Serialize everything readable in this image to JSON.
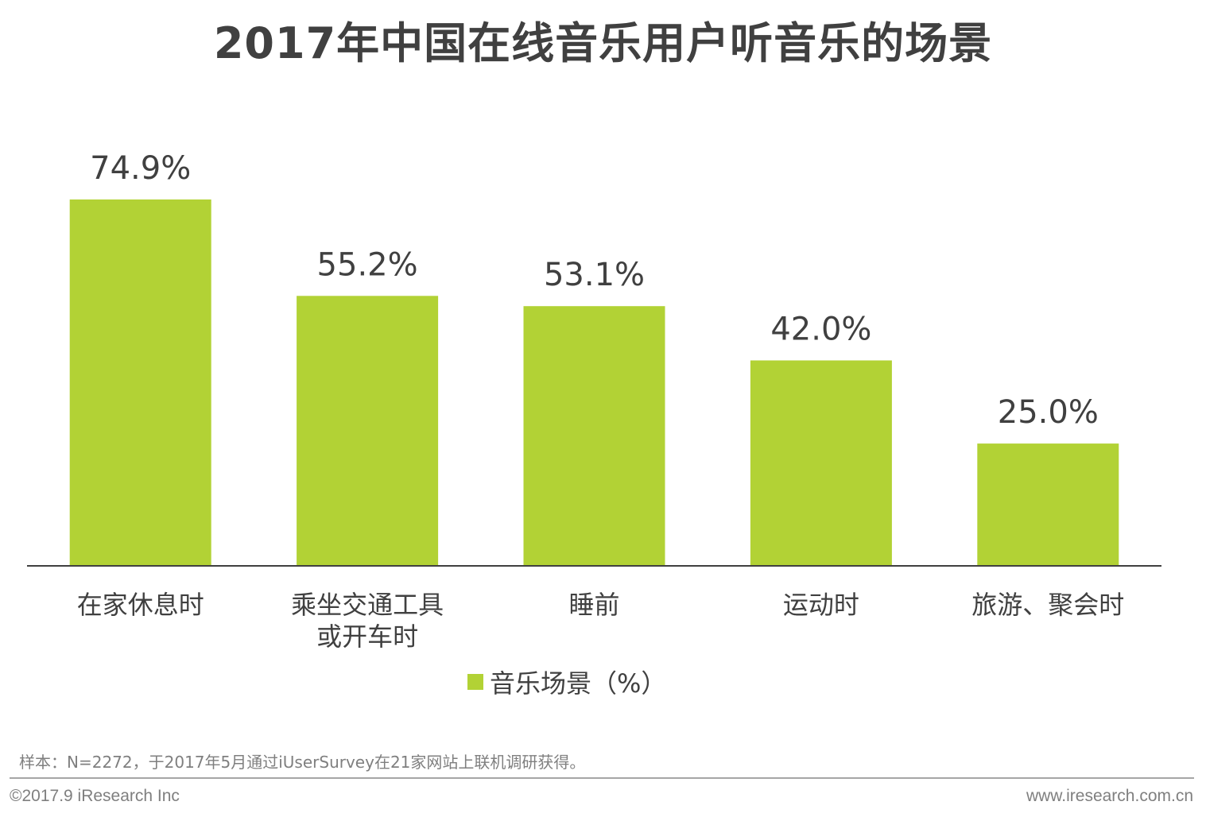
{
  "title": "2017年中国在线音乐用户听音乐的场景",
  "colors": {
    "bar": "#b2d235",
    "axis": "#404040",
    "text": "#404040",
    "muted": "#7f7f7f"
  },
  "chart_data": {
    "type": "bar",
    "title": "2017年中国在线音乐用户听音乐的场景",
    "categories": [
      [
        "在家休息时"
      ],
      [
        "乘坐交通工具",
        "或开车时"
      ],
      [
        "睡前"
      ],
      [
        "运动时"
      ],
      [
        "旅游、聚会时"
      ]
    ],
    "series": [
      {
        "name": "音乐场景（%）",
        "values": [
          74.9,
          55.2,
          53.1,
          42.0,
          25.0
        ],
        "labels": [
          "74.9%",
          "55.2%",
          "53.1%",
          "42.0%",
          "25.0%"
        ]
      }
    ],
    "ylim": [
      0,
      75
    ],
    "grid": false,
    "legend_position": "bottom-center"
  },
  "legend": {
    "label": "音乐场景（%）"
  },
  "footer": {
    "source": "样本：N=2272，于2017年5月通过iUserSurvey在21家网站上联机调研获得。",
    "copyright": "©2017.9 iResearch Inc",
    "site": "www.iresearch.com.cn"
  }
}
